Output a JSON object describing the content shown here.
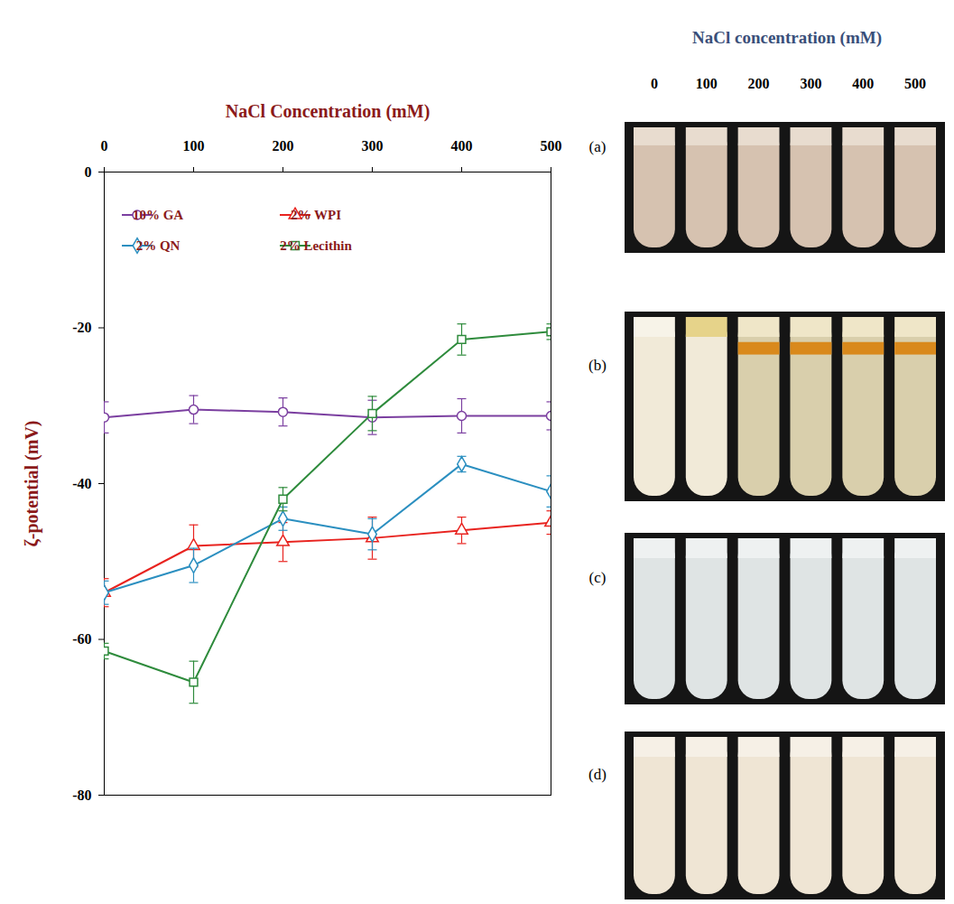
{
  "chart_data": {
    "type": "line",
    "xlabel": "NaCl Concentration (mM)",
    "ylabel": "ζ-potential (mV)",
    "x": [
      0,
      100,
      200,
      300,
      400,
      500
    ],
    "xlim": [
      0,
      500
    ],
    "xticks": [
      0,
      100,
      200,
      300,
      400,
      500
    ],
    "ylim": [
      -80,
      0
    ],
    "yticks": [
      0,
      -20,
      -40,
      -60,
      -80
    ],
    "grid": false,
    "legend": "upper left",
    "series": [
      {
        "name": "10% GA",
        "color": "#7b3fa0",
        "marker": "circle",
        "values": [
          -31.5,
          -30.5,
          -30.8,
          -31.5,
          -31.3,
          -31.3
        ],
        "errors": [
          2.0,
          1.8,
          1.8,
          2.2,
          2.2,
          1.8
        ]
      },
      {
        "name": "2% WPI",
        "color": "#e8231f",
        "marker": "triangle",
        "values": [
          -54.0,
          -48.0,
          -47.5,
          -47.0,
          -46.0,
          -45.0
        ],
        "errors": [
          1.8,
          2.7,
          2.5,
          2.7,
          1.7,
          1.5
        ]
      },
      {
        "name": "2% QN",
        "color": "#2b8fc0",
        "marker": "diamond",
        "values": [
          -54.0,
          -50.5,
          -44.5,
          -46.5,
          -37.5,
          -41.0
        ],
        "errors": [
          1.5,
          2.2,
          1.5,
          2.0,
          1.0,
          2.0
        ]
      },
      {
        "name": "2% Lecithin",
        "color": "#2e8b3c",
        "marker": "square",
        "values": [
          -61.5,
          -65.5,
          -42.0,
          -31.0,
          -21.5,
          -20.5
        ],
        "errors": [
          1.0,
          2.7,
          1.5,
          2.2,
          2.0,
          1.0
        ]
      }
    ]
  },
  "photos": {
    "title": "NaCl concentration (mM)",
    "columns": [
      0,
      100,
      200,
      300,
      400,
      500
    ],
    "rows": [
      "(a)",
      "(b)",
      "(c)",
      "(d)"
    ]
  }
}
